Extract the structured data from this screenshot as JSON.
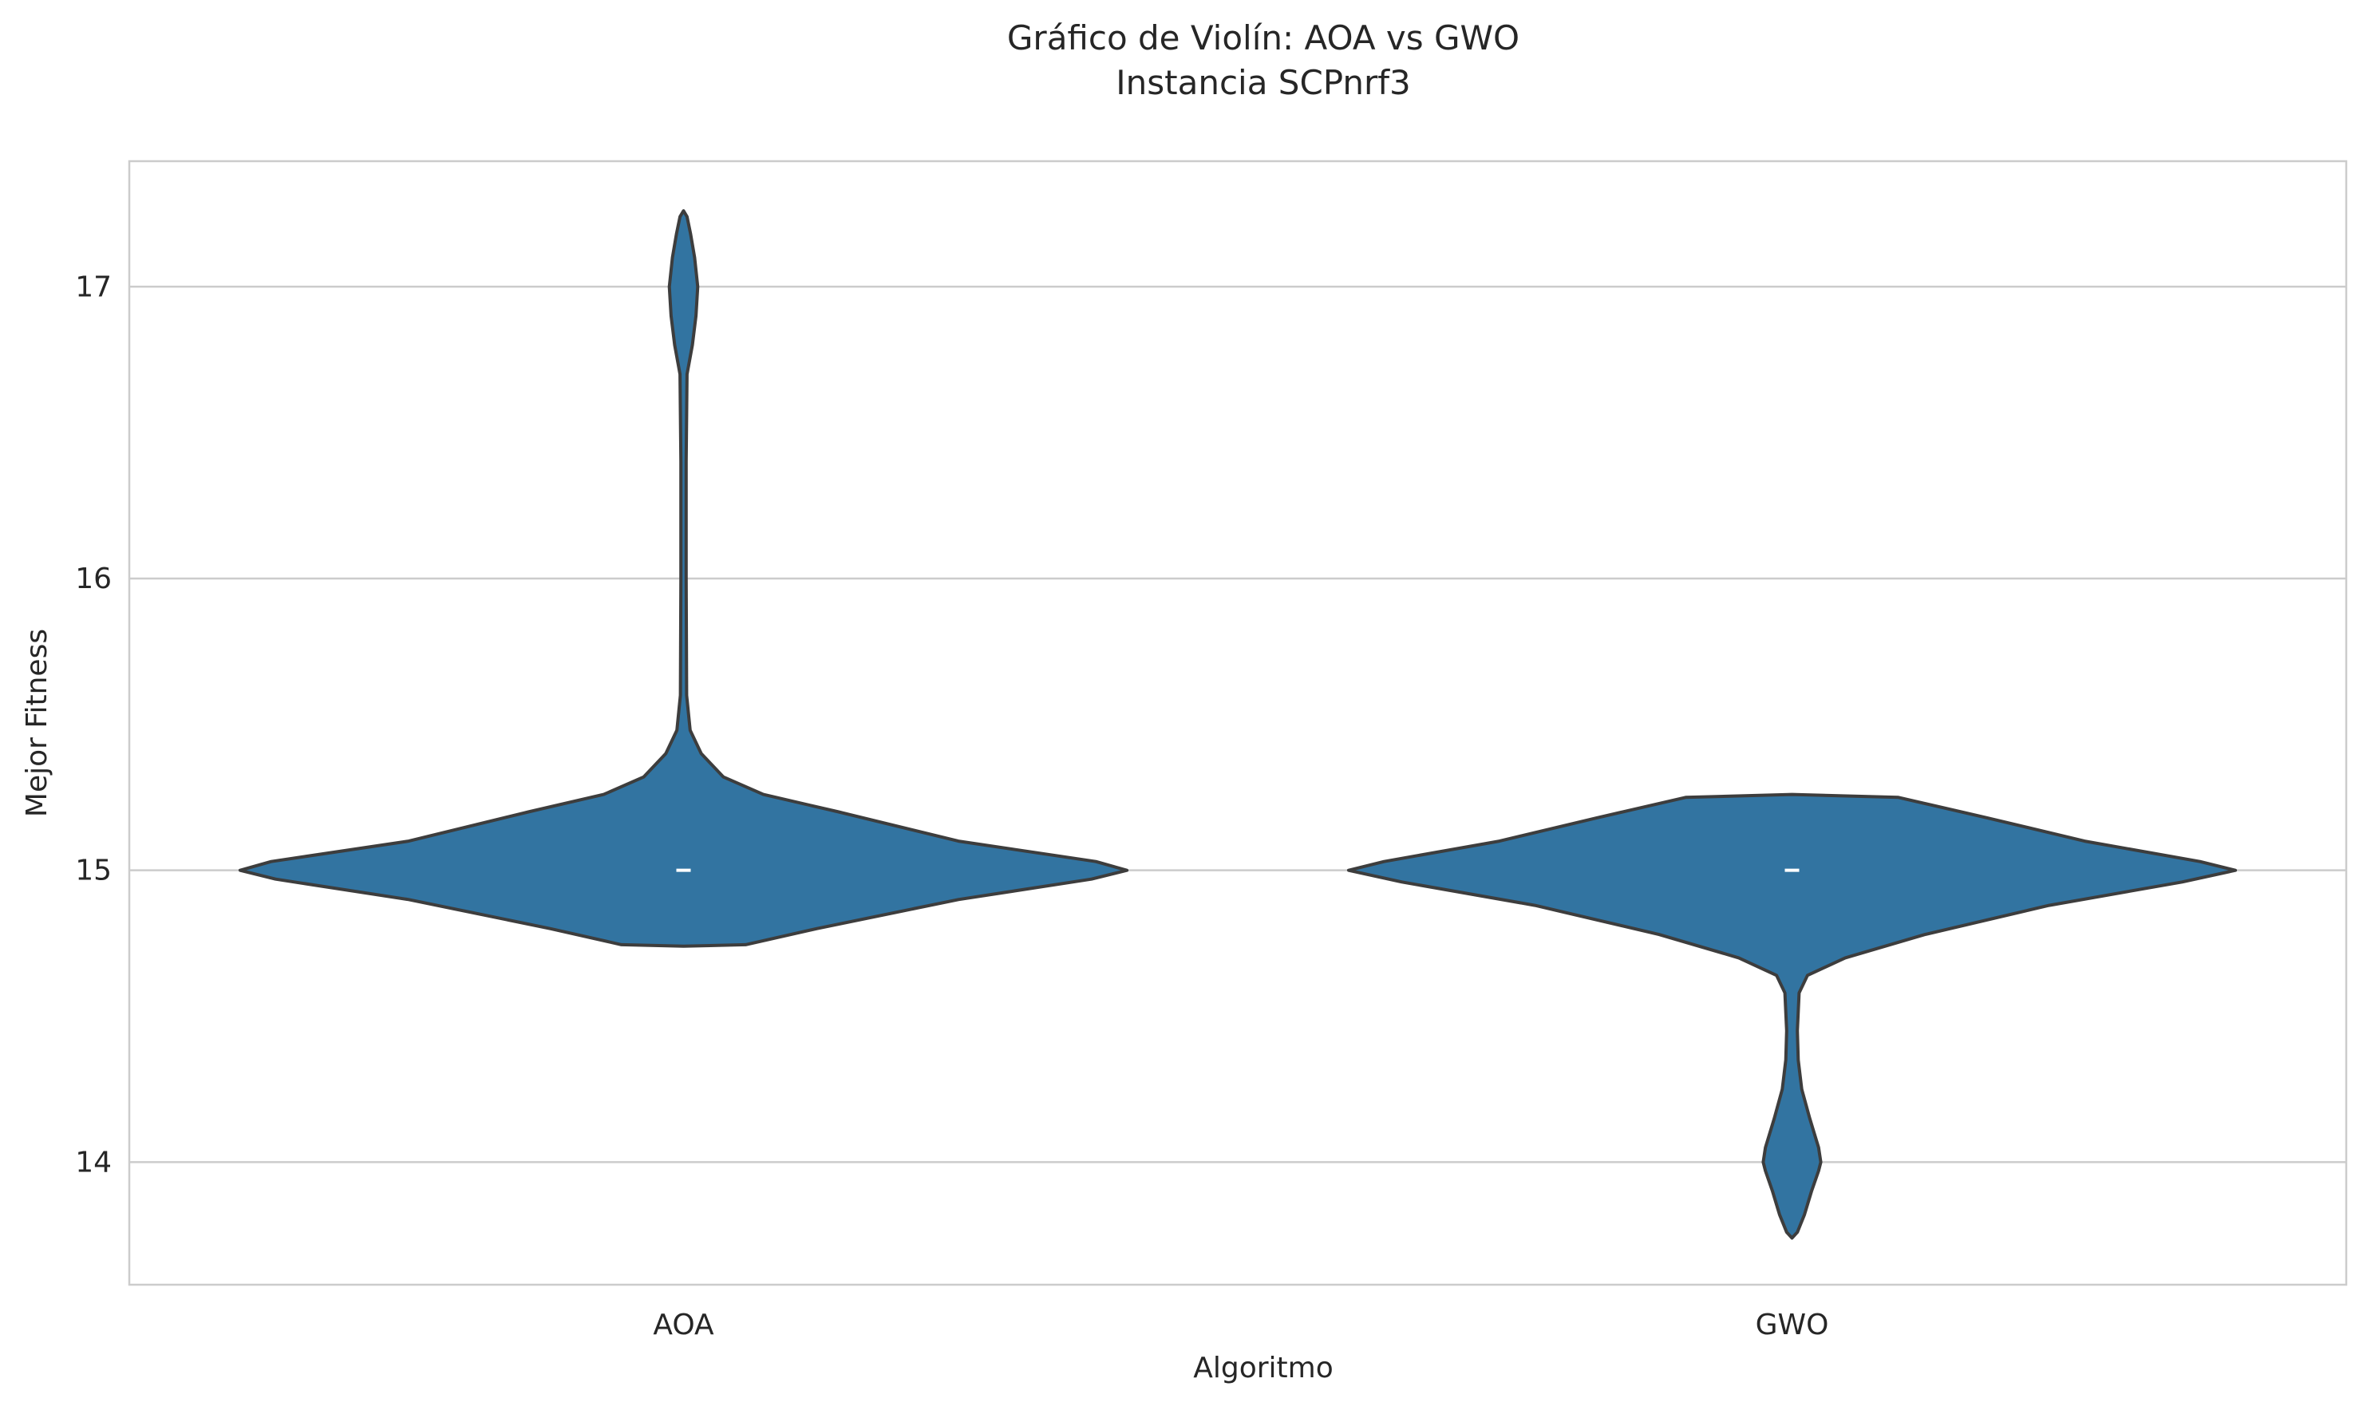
{
  "chart_data": {
    "type": "violin",
    "title": "Gráfico de Violín: AOA vs GWO",
    "subtitle": "Instancia SCPnrf3",
    "xlabel": "Algoritmo",
    "ylabel": "Mejor Fitness",
    "categories": [
      "AOA",
      "GWO"
    ],
    "ylim": [
      13.58,
      17.43
    ],
    "yticks": [
      14,
      15,
      16,
      17
    ],
    "ytick_labels": [
      "14",
      "15",
      "16",
      "17"
    ],
    "grid": "horizontal",
    "fill_color": "#3274a1",
    "edge_color": "#3d3d3d",
    "median_color": "#ffffff",
    "series": [
      {
        "category": "AOA",
        "median": 15,
        "min": 14.74,
        "max": 17.26,
        "profile": [
          [
            14.74,
            0.0
          ],
          [
            14.745,
            0.14
          ],
          [
            14.8,
            0.3
          ],
          [
            14.9,
            0.62
          ],
          [
            14.97,
            0.92
          ],
          [
            15.0,
            1.0
          ],
          [
            15.03,
            0.93
          ],
          [
            15.1,
            0.62
          ],
          [
            15.2,
            0.35
          ],
          [
            15.26,
            0.18
          ],
          [
            15.32,
            0.09
          ],
          [
            15.4,
            0.04
          ],
          [
            15.48,
            0.015
          ],
          [
            15.6,
            0.007
          ],
          [
            16.0,
            0.006
          ],
          [
            16.4,
            0.006
          ],
          [
            16.7,
            0.008
          ],
          [
            16.8,
            0.02
          ],
          [
            16.9,
            0.028
          ],
          [
            17.0,
            0.032
          ],
          [
            17.1,
            0.025
          ],
          [
            17.18,
            0.016
          ],
          [
            17.24,
            0.008
          ],
          [
            17.26,
            0.0
          ]
        ]
      },
      {
        "category": "GWO",
        "median": 15,
        "min": 13.74,
        "max": 15.26,
        "profile": [
          [
            13.74,
            0.0
          ],
          [
            13.76,
            0.012
          ],
          [
            13.82,
            0.028
          ],
          [
            13.9,
            0.044
          ],
          [
            13.97,
            0.06
          ],
          [
            14.0,
            0.065
          ],
          [
            14.05,
            0.06
          ],
          [
            14.15,
            0.04
          ],
          [
            14.25,
            0.022
          ],
          [
            14.35,
            0.014
          ],
          [
            14.45,
            0.012
          ],
          [
            14.58,
            0.016
          ],
          [
            14.64,
            0.035
          ],
          [
            14.7,
            0.12
          ],
          [
            14.78,
            0.3
          ],
          [
            14.88,
            0.58
          ],
          [
            14.96,
            0.88
          ],
          [
            15.0,
            1.0
          ],
          [
            15.03,
            0.92
          ],
          [
            15.1,
            0.66
          ],
          [
            15.18,
            0.44
          ],
          [
            15.25,
            0.24
          ],
          [
            15.26,
            0.0
          ]
        ]
      }
    ]
  }
}
